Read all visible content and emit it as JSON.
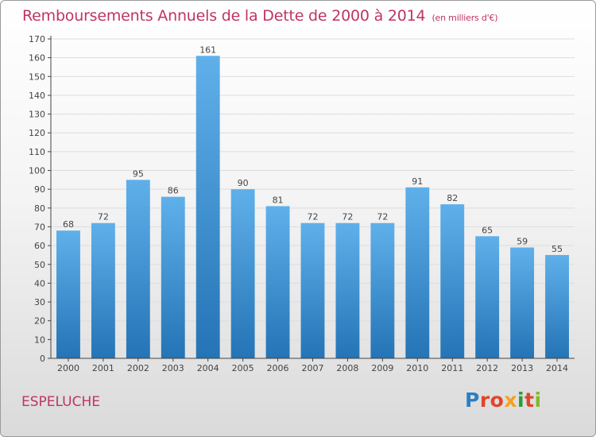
{
  "title": "Remboursements Annuels de la Dette de 2000 à 2014",
  "subtitle": "(en milliers d'€)",
  "place": "ESPELUCHE",
  "logo": {
    "text": "Proxiti",
    "colors": [
      "#2b7fc3",
      "#e0462b",
      "#e0462b",
      "#f5a219",
      "#2b9a3c",
      "#e0462b",
      "#7fba2b"
    ]
  },
  "colors": {
    "bar_top": "#5fb0ea",
    "bar_bottom": "#2474b6",
    "title": "#c0355f",
    "grid": "#dddddd",
    "axis": "#444444"
  },
  "chart_data": {
    "type": "bar",
    "categories": [
      "2000",
      "2001",
      "2002",
      "2003",
      "2004",
      "2005",
      "2006",
      "2007",
      "2008",
      "2009",
      "2010",
      "2011",
      "2012",
      "2013",
      "2014"
    ],
    "values": [
      68,
      72,
      95,
      86,
      161,
      90,
      81,
      72,
      72,
      72,
      91,
      82,
      65,
      59,
      55
    ],
    "title": "Remboursements Annuels de la Dette de 2000 à 2014",
    "subtitle": "(en milliers d'€)",
    "ylim": [
      0,
      170
    ],
    "yticks": [
      0,
      10,
      20,
      30,
      40,
      50,
      60,
      70,
      80,
      90,
      100,
      110,
      120,
      130,
      140,
      150,
      160,
      170
    ],
    "grid": true,
    "data_labels": true
  }
}
